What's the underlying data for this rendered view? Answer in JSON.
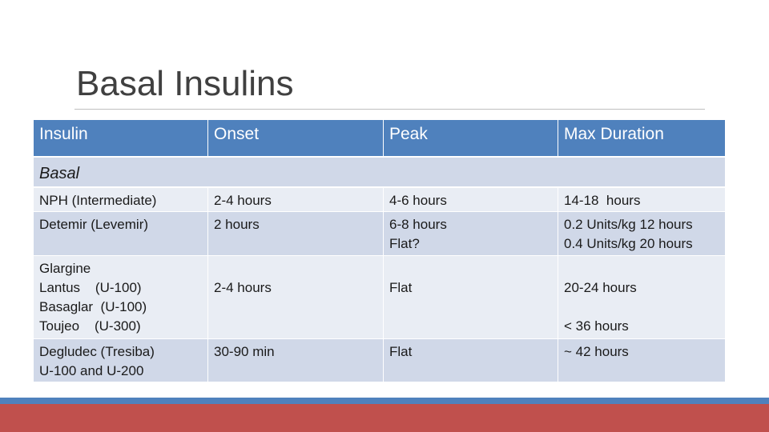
{
  "header": {
    "title": "Basal Insulins"
  },
  "table": {
    "columns": [
      "Insulin",
      "Onset",
      "Peak",
      "Max Duration"
    ],
    "section": "Basal",
    "rows": [
      [
        [
          "NPH (Intermediate)"
        ],
        [
          "2-4 hours"
        ],
        [
          "4-6 hours"
        ],
        [
          "14-18  hours"
        ]
      ],
      [
        [
          "Detemir (Levemir)"
        ],
        [
          "2 hours"
        ],
        [
          "6-8 hours",
          "Flat?"
        ],
        [
          "0.2 Units/kg 12 hours",
          "0.4 Units/kg 20 hours"
        ]
      ],
      [
        [
          "Glargine",
          "Lantus    (U-100)",
          "Basaglar  (U-100)",
          "Toujeo    (U-300)"
        ],
        [
          "2-4 hours"
        ],
        [
          "Flat"
        ],
        [
          "20-24 hours",
          "< 36 hours"
        ]
      ],
      [
        [
          "Degludec (Tresiba)",
          "U-100 and U-200"
        ],
        [
          "30-90 min"
        ],
        [
          "Flat"
        ],
        [
          "~ 42 hours"
        ]
      ]
    ]
  }
}
